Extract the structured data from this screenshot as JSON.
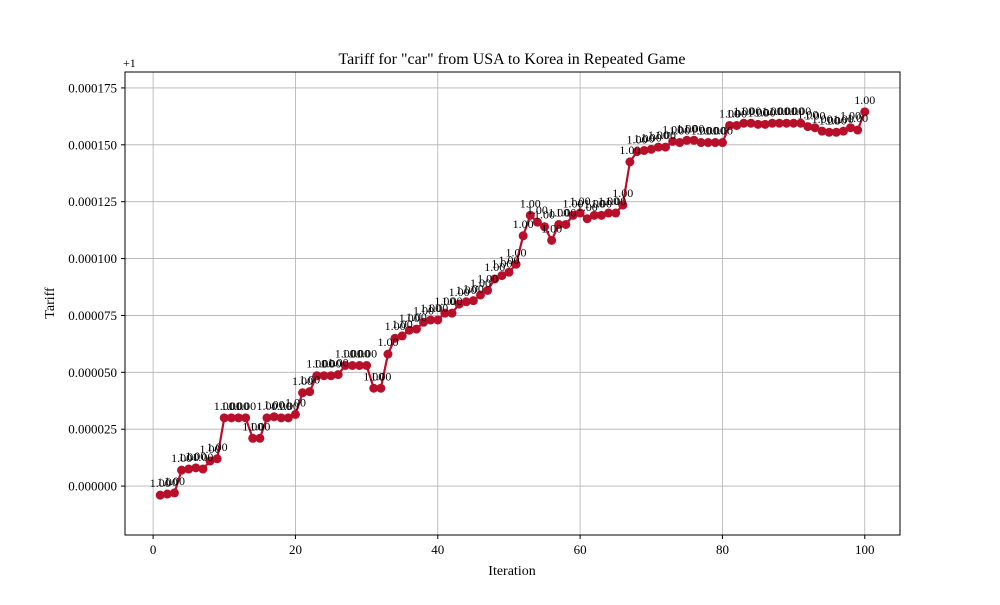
{
  "chart_data": {
    "type": "line",
    "title": "Tariff for \"car\" from USA to Korea in Repeated Game",
    "xlabel": "Iteration",
    "ylabel": "Tariff",
    "offset_label": "+1",
    "xlim": [
      -3.95,
      104.95
    ],
    "ylim": [
      -2.15e-05,
      0.000182
    ],
    "xticks": [
      0,
      20,
      40,
      60,
      80,
      100
    ],
    "yticks": [
      0.0,
      2.5e-05,
      5e-05,
      7.5e-05,
      0.0001,
      0.000125,
      0.00015,
      0.000175
    ],
    "ytick_labels": [
      "0.000000",
      "0.000025",
      "0.000050",
      "0.000075",
      "0.000100",
      "0.000125",
      "0.000150",
      "0.000175"
    ],
    "grid": true,
    "legend": "none",
    "color": "#b80f2a",
    "point_label_text": "1.00",
    "series": [
      {
        "x": [
          1,
          2,
          3,
          4,
          5,
          6,
          7,
          8,
          9,
          10,
          11,
          12,
          13,
          14,
          15,
          16,
          17,
          18,
          19,
          20,
          21,
          22,
          23,
          24,
          25,
          26,
          27,
          28,
          29,
          30,
          31,
          32,
          33,
          34,
          35,
          36,
          37,
          38,
          39,
          40,
          41,
          42,
          43,
          44,
          45,
          46,
          47,
          48,
          49,
          50,
          51,
          52,
          53,
          54,
          55,
          56,
          57,
          58,
          59,
          60,
          61,
          62,
          63,
          64,
          65,
          66,
          67,
          68,
          69,
          70,
          71,
          72,
          73,
          74,
          75,
          76,
          77,
          78,
          79,
          80,
          81,
          82,
          83,
          84,
          85,
          86,
          87,
          88,
          89,
          90,
          91,
          92,
          93,
          94,
          95,
          96,
          97,
          98,
          99,
          100
        ],
        "values": [
          -4e-06,
          -3.5e-06,
          -3e-06,
          7e-06,
          7.5e-06,
          8e-06,
          7.5e-06,
          1.1e-05,
          1.2e-05,
          3e-05,
          3e-05,
          3e-05,
          3e-05,
          2.1e-05,
          2.1e-05,
          3e-05,
          3.05e-05,
          3e-05,
          3e-05,
          3.15e-05,
          4.1e-05,
          4.15e-05,
          4.85e-05,
          4.85e-05,
          4.85e-05,
          4.9e-05,
          5.3e-05,
          5.3e-05,
          5.3e-05,
          5.3e-05,
          4.3e-05,
          4.3e-05,
          5.8e-05,
          6.5e-05,
          6.6e-05,
          6.85e-05,
          6.9e-05,
          7.2e-05,
          7.3e-05,
          7.3e-05,
          7.6e-05,
          7.6e-05,
          8e-05,
          8.1e-05,
          8.15e-05,
          8.4e-05,
          8.6e-05,
          9.1e-05,
          9.25e-05,
          9.4e-05,
          9.75e-05,
          0.00011,
          0.000119,
          0.000116,
          0.000114,
          0.000108,
          0.000115,
          0.000115,
          0.000119,
          0.00012,
          0.0001175,
          0.000119,
          0.000119,
          0.00012,
          0.00012,
          0.0001235,
          0.0001425,
          0.000147,
          0.0001475,
          0.000148,
          0.000149,
          0.000149,
          0.0001515,
          0.000151,
          0.000152,
          0.000152,
          0.000151,
          0.000151,
          0.000151,
          0.000151,
          0.0001585,
          0.0001585,
          0.0001595,
          0.0001595,
          0.000159,
          0.000159,
          0.0001595,
          0.0001595,
          0.0001595,
          0.0001595,
          0.0001595,
          0.000158,
          0.0001575,
          0.000156,
          0.0001555,
          0.0001555,
          0.000156,
          0.0001575,
          0.0001565,
          0.0001645
        ]
      }
    ]
  }
}
